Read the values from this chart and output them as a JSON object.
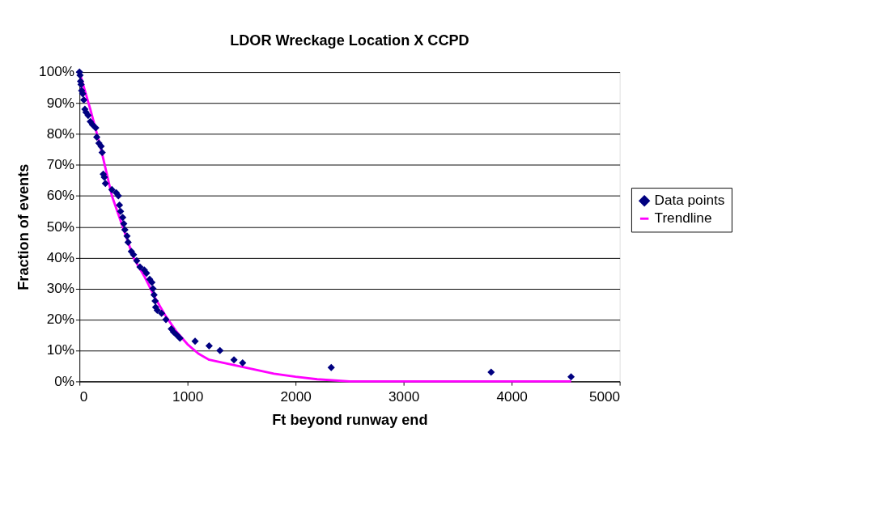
{
  "chart_data": {
    "type": "scatter",
    "title": "LDOR Wreckage Location X CCPD",
    "xlabel": "Ft beyond runway end",
    "ylabel": "Fraction of events",
    "xlim": [
      0,
      5000
    ],
    "xticks": [
      0,
      1000,
      2000,
      3000,
      4000,
      5000
    ],
    "ylim": [
      0,
      100
    ],
    "yticks": [
      {
        "value": 0,
        "label": "0%"
      },
      {
        "value": 10,
        "label": "10%"
      },
      {
        "value": 20,
        "label": "20%"
      },
      {
        "value": 30,
        "label": "30%"
      },
      {
        "value": 40,
        "label": "40%"
      },
      {
        "value": 50,
        "label": "50%"
      },
      {
        "value": 60,
        "label": "60%"
      },
      {
        "value": 70,
        "label": "70%"
      },
      {
        "value": 80,
        "label": "80%"
      },
      {
        "value": 90,
        "label": "90%"
      },
      {
        "value": 100,
        "label": "100%"
      }
    ],
    "grid": "y",
    "legend": "right",
    "series": [
      {
        "name": "Data points",
        "marker": "diamond",
        "color": "#000080",
        "x": [
          0,
          5,
          10,
          15,
          20,
          30,
          40,
          50,
          60,
          80,
          100,
          120,
          150,
          160,
          180,
          200,
          210,
          220,
          230,
          240,
          300,
          340,
          360,
          370,
          380,
          400,
          410,
          420,
          440,
          450,
          480,
          500,
          530,
          560,
          600,
          620,
          650,
          670,
          680,
          690,
          700,
          705,
          720,
          760,
          800,
          850,
          870,
          900,
          930,
          1070,
          1200,
          1300,
          1430,
          1510,
          2330,
          3810,
          4550
        ],
        "values": [
          100,
          99,
          97,
          96,
          94,
          93,
          91,
          88,
          87,
          86,
          84,
          83,
          82,
          79,
          77,
          76,
          74,
          67,
          66,
          64,
          62,
          61,
          60,
          57,
          55,
          53,
          51,
          49,
          47,
          45,
          42,
          41,
          39,
          37,
          36,
          35,
          33,
          32,
          30,
          28,
          26,
          24,
          23,
          22,
          20,
          17,
          16,
          15,
          14,
          13,
          11.5,
          10,
          7,
          6,
          4.5,
          3,
          1.5
        ]
      },
      {
        "name": "Trendline",
        "type": "line",
        "marker": "none",
        "color": "#ff00ff",
        "line_style": "solid",
        "x": [
          0,
          100,
          200,
          300,
          400,
          500,
          600,
          700,
          800,
          900,
          1000,
          1100,
          1200,
          1400,
          1600,
          1800,
          2000,
          2200,
          2500,
          4550
        ],
        "values": [
          100,
          88,
          75,
          60,
          50,
          40,
          34,
          27,
          21,
          16,
          12,
          9,
          7,
          5.5,
          4,
          2.5,
          1.5,
          0.7,
          0,
          0
        ]
      }
    ]
  }
}
